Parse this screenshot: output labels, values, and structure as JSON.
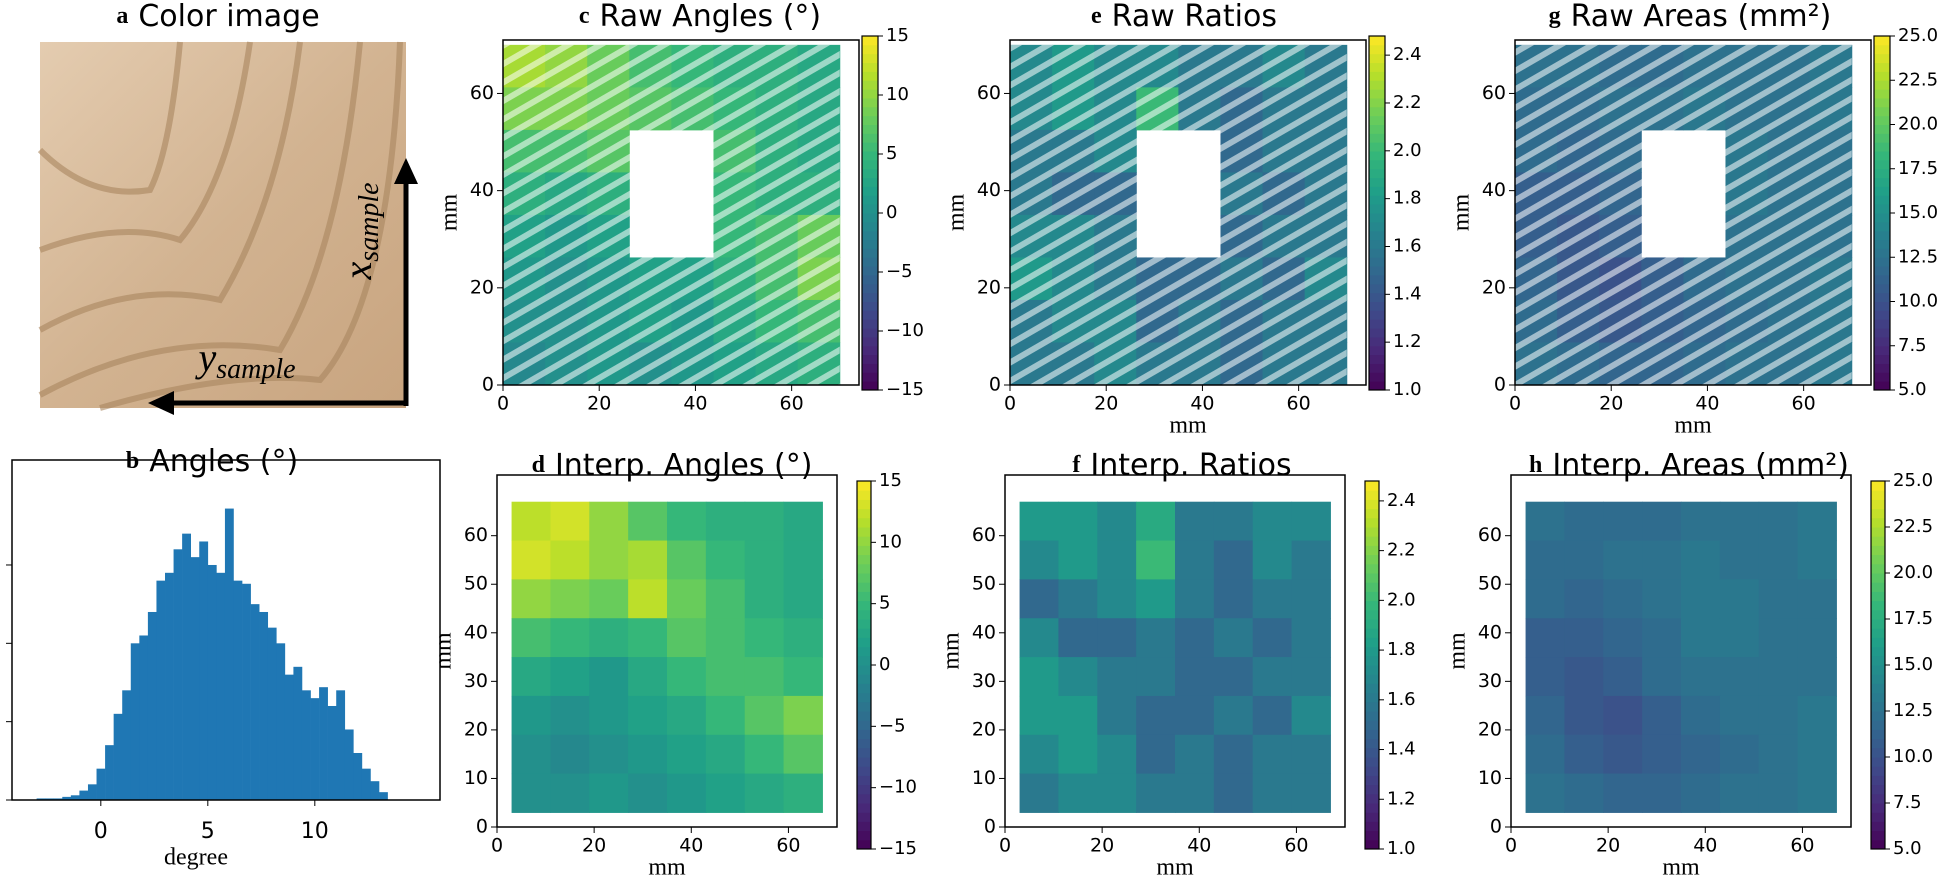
{
  "chart_data": [
    {
      "type": "image",
      "label": "a",
      "title": "Color image",
      "annotations": [
        {
          "text": "x",
          "subscript": "sample"
        },
        {
          "text": "y",
          "subscript": "sample"
        }
      ]
    },
    {
      "type": "histogram",
      "label": "b",
      "title": "Angles (°)",
      "xlabel": "degree",
      "color": "#1f77b4",
      "bins": [
        -3.0,
        -2.6,
        -2.2,
        -1.8,
        -1.4,
        -1.0,
        -0.6,
        -0.2,
        0.2,
        0.6,
        1.0,
        1.4,
        1.8,
        2.2,
        2.6,
        3.0,
        3.4,
        3.8,
        4.2,
        4.6,
        5.0,
        5.4,
        5.8,
        6.2,
        6.6,
        7.0,
        7.4,
        7.8,
        8.2,
        8.6,
        9.0,
        9.4,
        9.8,
        10.2,
        10.6,
        11.0,
        11.4,
        11.8,
        12.2,
        12.6,
        13.0,
        13.4
      ],
      "counts": [
        1,
        1,
        1,
        2,
        3,
        6,
        10,
        20,
        35,
        55,
        70,
        100,
        105,
        120,
        140,
        145,
        160,
        170,
        155,
        165,
        150,
        145,
        186,
        140,
        138,
        125,
        120,
        110,
        100,
        80,
        85,
        70,
        65,
        72,
        60,
        70,
        45,
        30,
        20,
        12,
        5
      ],
      "xlim": [
        -4.15,
        15.85
      ],
      "xticks": [
        0,
        5,
        10
      ],
      "ylim": [
        0,
        217
      ],
      "yticks": [
        0,
        50,
        100,
        150
      ]
    },
    {
      "type": "heatmap",
      "label": "c",
      "title": "Raw Angles (°)",
      "ylabel": "mm",
      "colormap": "viridis",
      "raw": true,
      "extent": [
        0,
        70,
        0,
        70
      ],
      "xlim": [
        0,
        74
      ],
      "ylim": [
        0,
        71
      ],
      "xticks": [
        0,
        20,
        40,
        60
      ],
      "yticks": [
        0,
        20,
        40,
        60
      ],
      "clim": [
        -15,
        15
      ],
      "cticks": [
        {
          "value": -15,
          "label": "−15"
        },
        {
          "value": -10,
          "label": "−10"
        },
        {
          "value": -5,
          "label": "−5"
        },
        0,
        5,
        10,
        15
      ],
      "z": [
        [
          11,
          10,
          8,
          6,
          5,
          4,
          4,
          3
        ],
        [
          9,
          9,
          8,
          7,
          6,
          5,
          4,
          3
        ],
        [
          6,
          6,
          7,
          null,
          null,
          6,
          4,
          3
        ],
        [
          4,
          3,
          4,
          null,
          null,
          5,
          4,
          4
        ],
        [
          2,
          1,
          2,
          null,
          null,
          5,
          6,
          8
        ],
        [
          1,
          0,
          1,
          2,
          2,
          4,
          6,
          9
        ],
        [
          0,
          0,
          1,
          2,
          1,
          3,
          5,
          6
        ],
        [
          -1,
          0,
          1,
          0,
          1,
          2,
          3,
          4
        ]
      ]
    },
    {
      "type": "heatmap",
      "label": "d",
      "title": "Interp. Angles (°)",
      "xlabel": "mm",
      "ylabel": "mm",
      "colormap": "viridis",
      "raw": false,
      "extent": [
        3,
        67,
        3,
        67
      ],
      "xlim": [
        0,
        70
      ],
      "ylim": [
        0,
        72.5
      ],
      "xticks": [
        0,
        20,
        40,
        60
      ],
      "yticks": [
        0,
        10,
        20,
        30,
        40,
        50,
        60
      ],
      "clim": [
        -15,
        15
      ],
      "cticks": [
        {
          "value": -15,
          "label": "−15"
        },
        {
          "value": -10,
          "label": "−10"
        },
        {
          "value": -5,
          "label": "−5"
        },
        0,
        5,
        10,
        15
      ],
      "z": [
        [
          12,
          13,
          10,
          7,
          5,
          4,
          4,
          3
        ],
        [
          13,
          12,
          10,
          11,
          7,
          5,
          4,
          3
        ],
        [
          10,
          9,
          8,
          12,
          8,
          6,
          4,
          3
        ],
        [
          6,
          5,
          4,
          5,
          7,
          6,
          5,
          4
        ],
        [
          3,
          2,
          1,
          3,
          5,
          6,
          6,
          5
        ],
        [
          1,
          0,
          1,
          2,
          3,
          5,
          7,
          9
        ],
        [
          0,
          -1,
          0,
          1,
          2,
          3,
          5,
          7
        ],
        [
          0,
          0,
          1,
          0,
          1,
          2,
          3,
          4
        ]
      ]
    },
    {
      "type": "heatmap",
      "label": "e",
      "title": "Raw Ratios",
      "xlabel": "mm",
      "ylabel": "mm",
      "colormap": "viridis",
      "raw": true,
      "extent": [
        0,
        70,
        0,
        70
      ],
      "xlim": [
        0,
        74
      ],
      "ylim": [
        0,
        71
      ],
      "xticks": [
        0,
        20,
        40,
        60
      ],
      "yticks": [
        0,
        20,
        40,
        60
      ],
      "clim": [
        1.0,
        2.48
      ],
      "cticks": [
        {
          "value": 1.0,
          "label": "1.0"
        },
        1.2,
        1.4,
        1.6,
        1.8,
        {
          "value": 2.0,
          "label": "2.0"
        },
        2.2,
        2.4
      ],
      "z": [
        [
          1.7,
          1.8,
          1.7,
          1.7,
          1.6,
          1.6,
          1.7,
          1.6
        ],
        [
          1.7,
          1.8,
          1.7,
          2.0,
          1.6,
          1.5,
          1.6,
          1.6
        ],
        [
          1.6,
          1.6,
          1.7,
          null,
          null,
          1.5,
          1.6,
          1.6
        ],
        [
          1.6,
          1.5,
          1.5,
          null,
          null,
          1.6,
          1.5,
          1.6
        ],
        [
          1.7,
          1.7,
          1.6,
          null,
          null,
          1.5,
          1.6,
          1.6
        ],
        [
          1.8,
          1.7,
          1.6,
          1.5,
          1.5,
          1.6,
          1.5,
          1.7
        ],
        [
          1.6,
          1.7,
          1.7,
          1.5,
          1.6,
          1.5,
          1.6,
          1.6
        ],
        [
          1.6,
          1.6,
          1.7,
          1.6,
          1.6,
          1.5,
          1.6,
          1.6
        ]
      ]
    },
    {
      "type": "heatmap",
      "label": "f",
      "title": "Interp. Ratios",
      "xlabel": "mm",
      "ylabel": "mm",
      "colormap": "viridis",
      "raw": false,
      "extent": [
        3,
        67,
        3,
        67
      ],
      "xlim": [
        0,
        70
      ],
      "ylim": [
        0,
        72.5
      ],
      "xticks": [
        0,
        20,
        40,
        60
      ],
      "yticks": [
        0,
        10,
        20,
        30,
        40,
        50,
        60
      ],
      "clim": [
        1.0,
        2.48
      ],
      "cticks": [
        {
          "value": 1.0,
          "label": "1.0"
        },
        1.2,
        1.4,
        1.6,
        1.8,
        {
          "value": 2.0,
          "label": "2.0"
        },
        2.2,
        2.4
      ],
      "z": [
        [
          1.8,
          1.8,
          1.7,
          1.9,
          1.6,
          1.6,
          1.7,
          1.7
        ],
        [
          1.7,
          1.8,
          1.7,
          2.0,
          1.6,
          1.5,
          1.7,
          1.6
        ],
        [
          1.5,
          1.6,
          1.7,
          1.8,
          1.6,
          1.5,
          1.6,
          1.6
        ],
        [
          1.7,
          1.5,
          1.5,
          1.6,
          1.5,
          1.6,
          1.5,
          1.6
        ],
        [
          1.8,
          1.7,
          1.6,
          1.6,
          1.5,
          1.5,
          1.6,
          1.6
        ],
        [
          1.8,
          1.8,
          1.6,
          1.5,
          1.5,
          1.6,
          1.5,
          1.7
        ],
        [
          1.7,
          1.8,
          1.7,
          1.5,
          1.6,
          1.5,
          1.6,
          1.6
        ],
        [
          1.6,
          1.7,
          1.7,
          1.6,
          1.6,
          1.5,
          1.6,
          1.6
        ]
      ]
    },
    {
      "type": "heatmap",
      "label": "g",
      "title": "Raw Areas (mm²)",
      "xlabel": "mm",
      "ylabel": "mm",
      "colormap": "viridis",
      "raw": true,
      "extent": [
        0,
        70,
        0,
        70
      ],
      "xlim": [
        0,
        74
      ],
      "ylim": [
        0,
        71
      ],
      "xticks": [
        0,
        20,
        40,
        60
      ],
      "yticks": [
        0,
        20,
        40,
        60
      ],
      "clim": [
        5,
        25
      ],
      "cticks": [
        {
          "value": 5,
          "label": "5.0"
        },
        7.5,
        {
          "value": 10,
          "label": "10.0"
        },
        12.5,
        {
          "value": 15,
          "label": "15.0"
        },
        17.5,
        {
          "value": 20,
          "label": "20.0"
        },
        22.5,
        {
          "value": 25,
          "label": "25.0"
        }
      ],
      "z": [
        [
          12.5,
          12.5,
          12,
          12,
          12.5,
          12.5,
          12.5,
          13
        ],
        [
          12,
          12,
          12.5,
          12.5,
          13,
          12.5,
          12.5,
          13
        ],
        [
          12,
          11.5,
          12,
          null,
          null,
          13,
          12.5,
          12.5
        ],
        [
          11,
          11,
          11.5,
          null,
          null,
          13,
          12.5,
          12.5
        ],
        [
          11,
          10.5,
          11,
          null,
          null,
          12.5,
          12.5,
          12.5
        ],
        [
          11.5,
          10.5,
          10,
          11,
          12,
          12.5,
          12.5,
          13
        ],
        [
          12,
          11,
          10.5,
          11,
          11.5,
          12,
          12.5,
          13
        ],
        [
          12.5,
          12,
          11.5,
          11.5,
          12,
          12.5,
          12.5,
          13
        ]
      ]
    },
    {
      "type": "heatmap",
      "label": "h",
      "title": "Interp. Areas (mm²)",
      "xlabel": "mm",
      "ylabel": "mm",
      "colormap": "viridis",
      "raw": false,
      "extent": [
        3,
        67,
        3,
        67
      ],
      "xlim": [
        0,
        70
      ],
      "ylim": [
        0,
        72.5
      ],
      "xticks": [
        0,
        20,
        40,
        60
      ],
      "yticks": [
        0,
        10,
        20,
        30,
        40,
        50,
        60
      ],
      "clim": [
        5,
        25
      ],
      "cticks": [
        {
          "value": 5,
          "label": "5.0"
        },
        7.5,
        {
          "value": 10,
          "label": "10.0"
        },
        12.5,
        {
          "value": 15,
          "label": "15.0"
        },
        17.5,
        {
          "value": 20,
          "label": "20.0"
        },
        22.5,
        {
          "value": 25,
          "label": "25.0"
        }
      ],
      "z": [
        [
          12.5,
          12,
          12,
          12,
          12.5,
          12.5,
          12.5,
          13
        ],
        [
          12,
          12,
          12.5,
          12.5,
          13,
          12.5,
          12.5,
          13
        ],
        [
          12,
          11.5,
          12,
          12.5,
          13,
          13,
          12.5,
          12.5
        ],
        [
          11,
          11,
          11.5,
          12,
          13,
          13,
          12.5,
          12.5
        ],
        [
          11,
          10.5,
          11,
          12,
          12.5,
          12.5,
          12.5,
          12.5
        ],
        [
          11.5,
          10.5,
          10,
          11,
          12,
          12.5,
          12.5,
          13
        ],
        [
          12,
          11,
          10.5,
          11,
          11.5,
          12,
          12.5,
          13
        ],
        [
          12.5,
          12,
          11.5,
          11.5,
          12,
          12.5,
          12.5,
          13
        ]
      ]
    }
  ]
}
